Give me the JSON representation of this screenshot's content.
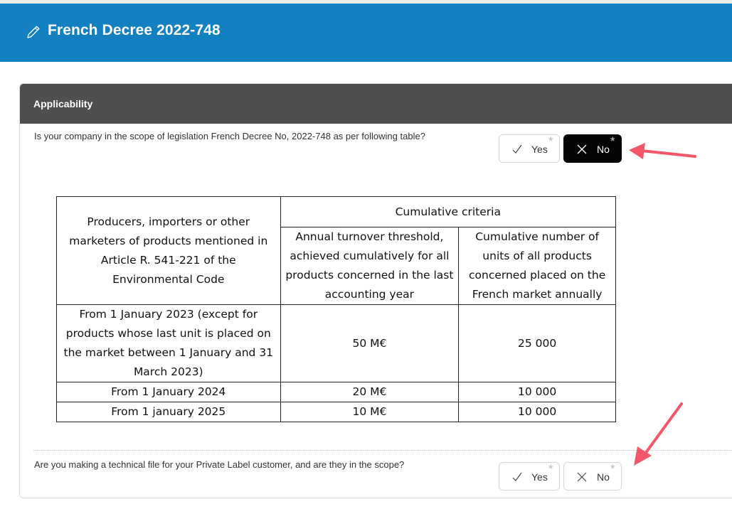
{
  "header": {
    "title": "French Decree 2022-748",
    "icon": "pencil-icon",
    "background": "#1380c2"
  },
  "section": {
    "title": "Applicability",
    "header_color": "#4f4f4f"
  },
  "questions": [
    {
      "text": "Is your company in the scope of legislation French Decree No, 2022-748 as per following table?",
      "options": [
        {
          "label": "Yes",
          "icon": "check-icon",
          "selected": false,
          "required_mark": "*"
        },
        {
          "label": "No",
          "icon": "x-icon",
          "selected": true,
          "required_mark": "*"
        }
      ]
    },
    {
      "text": "Are you making a technical file for your Private Label customer, and are they in the scope?",
      "options": [
        {
          "label": "Yes",
          "icon": "check-icon",
          "selected": false,
          "required_mark": "*"
        },
        {
          "label": "No",
          "icon": "x-icon",
          "selected": false,
          "required_mark": "*"
        }
      ]
    }
  ],
  "table": {
    "row_header": "Producers, importers or other marketers of products mentioned in Article R. 541-221 of the Environmental Code",
    "group_header": "Cumulative criteria",
    "col_headers": [
      "Annual turnover threshold, achieved cumulatively for all products concerned in the last accounting year",
      "Cumulative number of units of all products concerned placed on the French market annually"
    ],
    "rows": [
      {
        "period": "From 1 January 2023 (except for products whose last unit is placed on the market between 1 January and 31 March 2023)",
        "turnover": "50 M€",
        "units": "25 000"
      },
      {
        "period": "From 1 January 2024",
        "turnover": "20 M€",
        "units": "10 000"
      },
      {
        "period": "From 1 january 2025",
        "turnover": "10 M€",
        "units": "10 000"
      }
    ]
  },
  "annotations": {
    "arrow_color": "#f4566a"
  }
}
